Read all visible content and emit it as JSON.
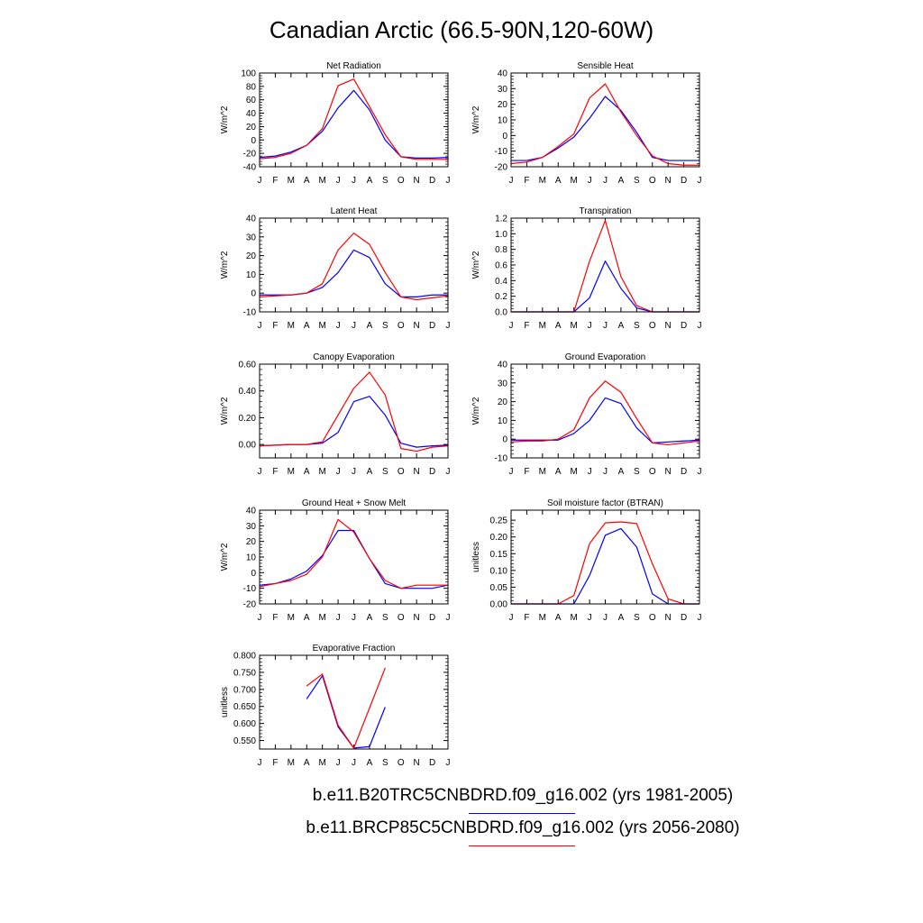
{
  "title": "Canadian Arctic (66.5-90N,120-60W)",
  "colors": {
    "run1": "#0000ff",
    "run2": "#ff0000"
  },
  "legend": [
    {
      "label": "b.e11.B20TRC5CNBDRD.f09_g16.002 (yrs 1981-2005)",
      "color": "#0000ff"
    },
    {
      "label": "b.e11.BRCP85C5CNBDRD.f09_g16.002 (yrs 2056-2080)",
      "color": "#ff0000"
    }
  ],
  "chart_data": [
    {
      "type": "line",
      "title": "Net Radiation",
      "ylabel": "W/m^2",
      "categories": [
        "J",
        "F",
        "M",
        "A",
        "M",
        "J",
        "J",
        "A",
        "S",
        "O",
        "N",
        "D",
        "J"
      ],
      "ylim": [
        -40,
        100
      ],
      "yticks": [
        -40,
        -20,
        0,
        20,
        40,
        60,
        80,
        100
      ],
      "ytick_labels": [
        "-40",
        "-20",
        "0",
        "20",
        "40",
        "60",
        "80",
        "100"
      ],
      "series": [
        {
          "color": "#0000ff",
          "values": [
            -26,
            -24,
            -18,
            -8,
            13,
            48,
            74,
            45,
            0,
            -25,
            -27,
            -27,
            -26
          ]
        },
        {
          "color": "#ff0000",
          "values": [
            -28,
            -26,
            -20,
            -8,
            17,
            81,
            91,
            50,
            8,
            -25,
            -29,
            -29,
            -29
          ]
        }
      ]
    },
    {
      "type": "line",
      "title": "Sensible Heat",
      "ylabel": "W/m^2",
      "categories": [
        "J",
        "F",
        "M",
        "A",
        "M",
        "J",
        "J",
        "A",
        "S",
        "O",
        "N",
        "D",
        "J"
      ],
      "ylim": [
        -20,
        40
      ],
      "yticks": [
        -20,
        -10,
        0,
        10,
        20,
        30,
        40
      ],
      "ytick_labels": [
        "-20",
        "-10",
        "0",
        "10",
        "20",
        "30",
        "40"
      ],
      "series": [
        {
          "color": "#0000ff",
          "values": [
            -16,
            -16,
            -14,
            -8,
            -1,
            11,
            25,
            16,
            2,
            -14,
            -16,
            -16,
            -16
          ]
        },
        {
          "color": "#ff0000",
          "values": [
            -18,
            -17,
            -14,
            -7,
            1,
            24,
            33,
            15,
            0,
            -13,
            -18,
            -19,
            -19
          ]
        }
      ]
    },
    {
      "type": "line",
      "title": "Latent Heat",
      "ylabel": "W/m^2",
      "categories": [
        "J",
        "F",
        "M",
        "A",
        "M",
        "J",
        "J",
        "A",
        "S",
        "O",
        "N",
        "D",
        "J"
      ],
      "ylim": [
        -10,
        40
      ],
      "yticks": [
        -10,
        0,
        10,
        20,
        30,
        40
      ],
      "ytick_labels": [
        "-10",
        "0",
        "10",
        "20",
        "30",
        "40"
      ],
      "series": [
        {
          "color": "#0000ff",
          "values": [
            -1,
            -1,
            -1,
            0,
            3,
            11,
            23,
            19,
            5,
            -2,
            -2,
            -1,
            -1
          ]
        },
        {
          "color": "#ff0000",
          "values": [
            -2,
            -1.5,
            -1,
            0,
            5,
            23,
            32,
            26,
            11,
            -2,
            -3.5,
            -2.5,
            -1.5
          ]
        }
      ]
    },
    {
      "type": "line",
      "title": "Transpiration",
      "ylabel": "W/m^2",
      "categories": [
        "J",
        "F",
        "M",
        "A",
        "M",
        "J",
        "J",
        "A",
        "S",
        "O",
        "N",
        "D",
        "J"
      ],
      "ylim": [
        0,
        1.2
      ],
      "yticks": [
        0,
        0.2,
        0.4,
        0.6,
        0.8,
        1.0,
        1.2
      ],
      "ytick_labels": [
        "0.0",
        "0.2",
        "0.4",
        "0.6",
        "0.8",
        "1.0",
        "1.2"
      ],
      "series": [
        {
          "color": "#0000ff",
          "values": [
            0,
            0,
            0,
            0,
            0,
            0.18,
            0.65,
            0.3,
            0.05,
            0,
            0,
            0,
            0
          ]
        },
        {
          "color": "#ff0000",
          "values": [
            0,
            0,
            0,
            0,
            0,
            0.65,
            1.17,
            0.45,
            0.08,
            0,
            0,
            0,
            0
          ]
        }
      ]
    },
    {
      "type": "line",
      "title": "Canopy Evaporation",
      "ylabel": "W/m^2",
      "categories": [
        "J",
        "F",
        "M",
        "A",
        "M",
        "J",
        "J",
        "A",
        "S",
        "O",
        "N",
        "D",
        "J"
      ],
      "ylim": [
        -0.1,
        0.6
      ],
      "yticks": [
        0,
        0.2,
        0.4,
        0.6
      ],
      "ytick_labels": [
        "0.00",
        "0.20",
        "0.40",
        "0.60"
      ],
      "series": [
        {
          "color": "#0000ff",
          "values": [
            -0.01,
            -0.005,
            0,
            0,
            0.01,
            0.09,
            0.32,
            0.36,
            0.22,
            0.01,
            -0.02,
            -0.01,
            -0.005
          ]
        },
        {
          "color": "#ff0000",
          "values": [
            -0.01,
            -0.005,
            0,
            0,
            0.02,
            0.22,
            0.42,
            0.54,
            0.37,
            -0.03,
            -0.05,
            -0.02,
            -0.01
          ]
        }
      ]
    },
    {
      "type": "line",
      "title": "Ground Evaporation",
      "ylabel": "W/m^2",
      "categories": [
        "J",
        "F",
        "M",
        "A",
        "M",
        "J",
        "J",
        "A",
        "S",
        "O",
        "N",
        "D",
        "J"
      ],
      "ylim": [
        -10,
        40
      ],
      "yticks": [
        -10,
        0,
        10,
        20,
        30,
        40
      ],
      "ytick_labels": [
        "-10",
        "0",
        "10",
        "20",
        "30",
        "40"
      ],
      "series": [
        {
          "color": "#0000ff",
          "values": [
            -0.5,
            -0.5,
            -0.5,
            -0.5,
            3,
            10,
            22,
            19,
            6,
            -2,
            -1.5,
            -1,
            -0.5
          ]
        },
        {
          "color": "#ff0000",
          "values": [
            -1.5,
            -1,
            -1,
            0,
            5,
            22,
            31,
            25,
            11,
            -2,
            -3,
            -2,
            -1
          ]
        }
      ]
    },
    {
      "type": "line",
      "title": "Ground Heat + Snow Melt",
      "ylabel": "W/m^2",
      "categories": [
        "J",
        "F",
        "M",
        "A",
        "M",
        "J",
        "J",
        "A",
        "S",
        "O",
        "N",
        "D",
        "J"
      ],
      "ylim": [
        -20,
        40
      ],
      "yticks": [
        -20,
        -10,
        0,
        10,
        20,
        30,
        40
      ],
      "ytick_labels": [
        "-20",
        "-10",
        "0",
        "10",
        "20",
        "30",
        "40"
      ],
      "series": [
        {
          "color": "#0000ff",
          "values": [
            -8,
            -7,
            -4,
            1,
            11,
            27,
            27,
            9,
            -7,
            -10,
            -10,
            -10,
            -8
          ]
        },
        {
          "color": "#ff0000",
          "values": [
            -9,
            -7,
            -5,
            -1,
            10,
            34,
            26,
            9,
            -5,
            -10,
            -8,
            -8,
            -8
          ]
        }
      ]
    },
    {
      "type": "line",
      "title": "Soil moisture factor (BTRAN)",
      "ylabel": "unitless",
      "categories": [
        "J",
        "F",
        "M",
        "A",
        "M",
        "J",
        "J",
        "A",
        "S",
        "O",
        "N",
        "D",
        "J"
      ],
      "ylim": [
        0,
        0.28
      ],
      "yticks": [
        0,
        0.05,
        0.1,
        0.15,
        0.2,
        0.25
      ],
      "ytick_labels": [
        "0.00",
        "0.05",
        "0.10",
        "0.15",
        "0.20",
        "0.25"
      ],
      "series": [
        {
          "color": "#0000ff",
          "values": [
            0,
            0,
            0,
            0,
            0,
            0.085,
            0.205,
            0.225,
            0.17,
            0.03,
            0,
            0,
            0
          ]
        },
        {
          "color": "#ff0000",
          "values": [
            0,
            0,
            0,
            0,
            0.025,
            0.18,
            0.242,
            0.245,
            0.24,
            0.12,
            0.015,
            0,
            0
          ]
        }
      ]
    },
    {
      "type": "line",
      "title": "Evaporative Fraction",
      "ylabel": "unitless",
      "categories": [
        "J",
        "F",
        "M",
        "A",
        "M",
        "J",
        "J",
        "A",
        "S",
        "O",
        "N",
        "D",
        "J"
      ],
      "ylim": [
        0.525,
        0.8
      ],
      "yticks": [
        0.55,
        0.6,
        0.65,
        0.7,
        0.75,
        0.8
      ],
      "ytick_labels": [
        "0.550",
        "0.600",
        "0.650",
        "0.700",
        "0.750",
        "0.800"
      ],
      "series": [
        {
          "color": "#0000ff",
          "values": [
            null,
            null,
            null,
            0.672,
            0.74,
            0.59,
            0.528,
            0.532,
            0.648,
            null,
            null,
            null,
            null
          ]
        },
        {
          "color": "#ff0000",
          "values": [
            null,
            null,
            null,
            0.71,
            0.745,
            0.595,
            0.528,
            0.645,
            0.763,
            null,
            null,
            null,
            null
          ]
        }
      ]
    }
  ]
}
